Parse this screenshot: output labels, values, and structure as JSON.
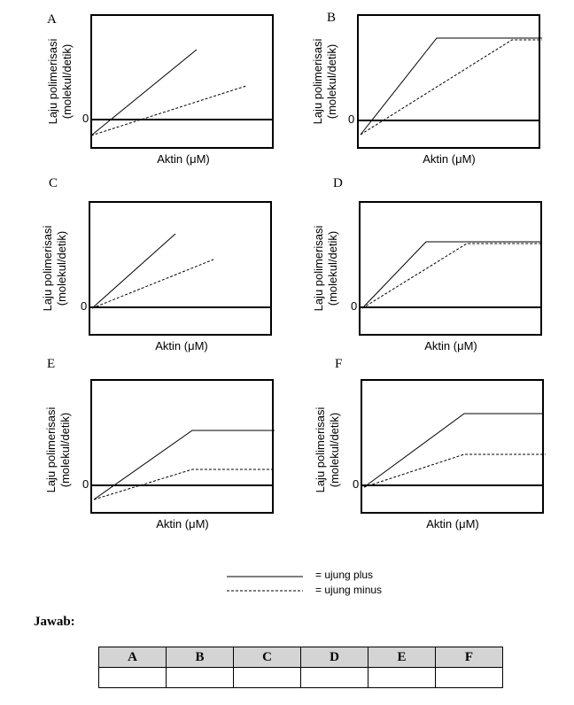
{
  "panels": [
    {
      "id": "A",
      "ylabel_line1": "Laju polimerisasi",
      "ylabel_line2": "(molekul/detik)",
      "zero": "0",
      "xlabel": "Aktin (μM)"
    },
    {
      "id": "B",
      "ylabel_line1": "Laju polimerisasi",
      "ylabel_line2": "(molekul/detik)",
      "zero": "0",
      "xlabel": "Aktin (μM)"
    },
    {
      "id": "C",
      "ylabel_line1": "Laju polimerisasi",
      "ylabel_line2": "(molekul/detik)",
      "zero": "0",
      "xlabel": "Aktin (μM)"
    },
    {
      "id": "D",
      "ylabel_line1": "Laju polimerisasi",
      "ylabel_line2": "(molekul/detik)",
      "zero": "0",
      "xlabel": "Aktin (μM)"
    },
    {
      "id": "E",
      "ylabel_line1": "Laju polimerisasi",
      "ylabel_line2": "(molekul/detik)",
      "zero": "0",
      "xlabel": "Aktin (μM)"
    },
    {
      "id": "F",
      "ylabel_line1": "Laju polimerisasi",
      "ylabel_line2": "(molekul/detik)",
      "zero": "0",
      "xlabel": "Aktin (μM)"
    }
  ],
  "legend": {
    "solid_label": "= ujung plus",
    "dashed_label": "= ujung minus"
  },
  "answer": {
    "title": "Jawab:",
    "headers": [
      "A",
      "B",
      "C",
      "D",
      "E",
      "F"
    ],
    "answers": [
      "",
      "",
      "",
      "",
      "",
      ""
    ]
  }
}
